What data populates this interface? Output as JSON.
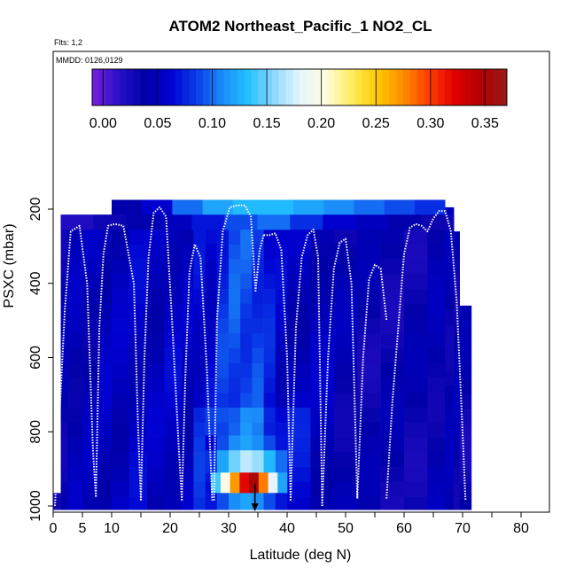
{
  "chart_data": {
    "type": "heatmap",
    "title": "ATOM2 Northeast_Pacific_1 NO2_CL",
    "flights_label": "Flts: 1,2",
    "dates_label": "MMDD: 0126,0129",
    "xlabel": "Latitude (deg N)",
    "ylabel": "PSXC (mbar)",
    "xlim": [
      0,
      85
    ],
    "ylim": [
      1020,
      50
    ],
    "x_ticks": [
      0,
      5,
      10,
      20,
      30,
      40,
      50,
      60,
      70,
      80
    ],
    "y_ticks": [
      200,
      400,
      600,
      800,
      1000
    ],
    "colorbar": {
      "min": -0.01,
      "max": 0.37,
      "ticks": [
        0.0,
        0.05,
        0.1,
        0.15,
        0.2,
        0.25,
        0.3,
        0.35
      ],
      "tick_labels": [
        "0.00",
        "0.05",
        "0.10",
        "0.15",
        "0.20",
        "0.25",
        "0.30",
        "0.35"
      ],
      "colors": [
        "#7a1fe0",
        "#2a10c8",
        "#0000a8",
        "#0000d0",
        "#0a3ae8",
        "#1a8af8",
        "#22c0ff",
        "#8ad8ff",
        "#e6f6ff",
        "#fffce0",
        "#ffee60",
        "#ffc800",
        "#ff8c00",
        "#ff3c00",
        "#e00000",
        "#b00000",
        "#9a1a1a"
      ]
    },
    "grid": false,
    "legend": "colorbar top",
    "marker_latitude": 34.5,
    "flight_columns": [
      {
        "x0": 0,
        "x1": 1.3,
        "top": 965,
        "value": 0.04
      },
      {
        "x0": 1.3,
        "x1": 2.5,
        "top": 215,
        "value": 0.04
      },
      {
        "x0": 2.5,
        "x1": 5,
        "top": 215,
        "value": 0.045
      },
      {
        "x0": 5,
        "x1": 8,
        "top": 215,
        "value": 0.045
      },
      {
        "x0": 8,
        "x1": 10,
        "top": 215,
        "value": 0.05
      },
      {
        "x0": 10,
        "x1": 13,
        "top": 175,
        "value": 0.05
      },
      {
        "x0": 13,
        "x1": 16,
        "top": 175,
        "value": 0.055
      },
      {
        "x0": 16,
        "x1": 19,
        "top": 175,
        "value": 0.05
      },
      {
        "x0": 19,
        "x1": 22,
        "top": 175,
        "value": 0.055
      },
      {
        "x0": 22,
        "x1": 24,
        "top": 175,
        "value": 0.05
      },
      {
        "x0": 24,
        "x1": 26,
        "top": 175,
        "value": 0.06
      },
      {
        "x0": 26,
        "x1": 28,
        "top": 175,
        "value": 0.06
      },
      {
        "x0": 28,
        "x1": 30,
        "top": 175,
        "value": 0.08
      },
      {
        "x0": 30,
        "x1": 32,
        "top": 175,
        "value": 0.09
      },
      {
        "x0": 32,
        "x1": 34,
        "top": 175,
        "value": 0.09
      },
      {
        "x0": 34,
        "x1": 36,
        "top": 175,
        "value": 0.085
      },
      {
        "x0": 36,
        "x1": 38,
        "top": 175,
        "value": 0.07
      },
      {
        "x0": 38,
        "x1": 40,
        "top": 175,
        "value": 0.055
      },
      {
        "x0": 40,
        "x1": 44,
        "top": 175,
        "value": 0.05
      },
      {
        "x0": 44,
        "x1": 48,
        "top": 175,
        "value": 0.05
      },
      {
        "x0": 48,
        "x1": 52,
        "top": 175,
        "value": 0.04
      },
      {
        "x0": 52,
        "x1": 56,
        "top": 175,
        "value": 0.035
      },
      {
        "x0": 56,
        "x1": 60,
        "top": 175,
        "value": 0.035
      },
      {
        "x0": 60,
        "x1": 64,
        "top": 175,
        "value": 0.035
      },
      {
        "x0": 64,
        "x1": 67,
        "top": 175,
        "value": 0.04
      },
      {
        "x0": 67,
        "x1": 68.5,
        "top": 195,
        "value": 0.04
      },
      {
        "x0": 68.5,
        "x1": 69.5,
        "top": 260,
        "value": 0.04
      },
      {
        "x0": 69.5,
        "x1": 71.5,
        "top": 460,
        "value": 0.035
      }
    ],
    "layer_rows": [
      {
        "p0": 175,
        "p1": 215,
        "x0": 10,
        "x1": 67,
        "values": [
          0.04,
          0.06,
          0.1,
          0.12,
          0.13,
          0.13,
          0.12,
          0.11,
          0.1,
          0.09,
          0.08
        ]
      },
      {
        "p0": 215,
        "p1": 255,
        "x0": 1.3,
        "x1": 68.5,
        "values": [
          0.02,
          0.03,
          0.04,
          0.05,
          0.07,
          0.09,
          0.1,
          0.08,
          0.06,
          0.05,
          0.04,
          0.03
        ]
      },
      {
        "p0": 810,
        "p1": 850,
        "x0": 26,
        "x1": 40,
        "values": [
          0.06,
          0.09,
          0.11,
          0.12,
          0.11,
          0.09,
          0.07
        ]
      },
      {
        "p0": 850,
        "p1": 910,
        "x0": 26,
        "x1": 40,
        "values": [
          0.08,
          0.12,
          0.15,
          0.17,
          0.16,
          0.13,
          0.1
        ]
      },
      {
        "p0": 910,
        "p1": 965,
        "x0": 27,
        "x1": 40,
        "values": [
          0.14,
          0.2,
          0.27,
          0.32,
          0.35,
          0.28,
          0.18,
          0.12
        ]
      },
      {
        "p0": 965,
        "p1": 1010,
        "x0": 26,
        "x1": 40,
        "values": [
          0.07,
          0.09,
          0.11,
          0.12,
          0.11,
          0.09,
          0.07
        ]
      }
    ],
    "profiles": [
      {
        "lat": [
          0.3,
          1.0,
          2.0,
          3.0,
          4.5,
          5.8,
          6.8,
          7.3
        ],
        "p": [
          1000,
          780,
          470,
          260,
          245,
          400,
          850,
          975
        ]
      },
      {
        "lat": [
          7.3,
          7.9,
          8.6,
          9.4,
          10.5,
          12.0,
          13.8,
          14.5,
          15.0
        ],
        "p": [
          975,
          520,
          320,
          245,
          240,
          245,
          400,
          780,
          985
        ]
      },
      {
        "lat": [
          15.0,
          15.6,
          16.3,
          17.2,
          18.2,
          19.3,
          20.4,
          21.5,
          22.0
        ],
        "p": [
          985,
          600,
          330,
          210,
          195,
          220,
          520,
          850,
          985
        ]
      },
      {
        "lat": [
          22.0,
          22.6,
          23.3,
          24.2,
          25.2,
          26.3,
          27.2
        ],
        "p": [
          985,
          650,
          370,
          295,
          330,
          640,
          985
        ]
      },
      {
        "lat": [
          27.5,
          28.0,
          29.0,
          30.2,
          31.5,
          32.8,
          33.8,
          34.6,
          35.3,
          36.0
        ],
        "p": [
          985,
          500,
          260,
          195,
          190,
          190,
          220,
          420,
          310,
          270
        ]
      },
      {
        "lat": [
          36.0,
          37.0,
          38.0,
          39.0,
          40.0,
          40.6
        ],
        "p": [
          270,
          270,
          265,
          310,
          600,
          985
        ]
      },
      {
        "lat": [
          40.6,
          41.5,
          42.5,
          43.5,
          44.5,
          45.3,
          46.0
        ],
        "p": [
          985,
          520,
          330,
          270,
          255,
          330,
          1000
        ]
      },
      {
        "lat": [
          46.0,
          47.0,
          48.0,
          49.0,
          50.0,
          51.0,
          52.0
        ],
        "p": [
          1000,
          600,
          360,
          290,
          280,
          400,
          980
        ]
      },
      {
        "lat": [
          52.0,
          53.0,
          54.0,
          55.0,
          56.0,
          57.0
        ],
        "p": [
          980,
          600,
          390,
          350,
          360,
          500,
          980
        ]
      },
      {
        "lat": [
          57.0,
          58.0,
          59.0,
          60.0,
          61.0,
          62.0,
          63.0,
          64.0,
          65.0,
          66.0,
          67.0,
          68.0,
          69.0,
          70.0,
          70.5
        ],
        "p": [
          980,
          720,
          520,
          320,
          250,
          240,
          245,
          260,
          225,
          205,
          205,
          260,
          450,
          800,
          985
        ]
      }
    ]
  }
}
